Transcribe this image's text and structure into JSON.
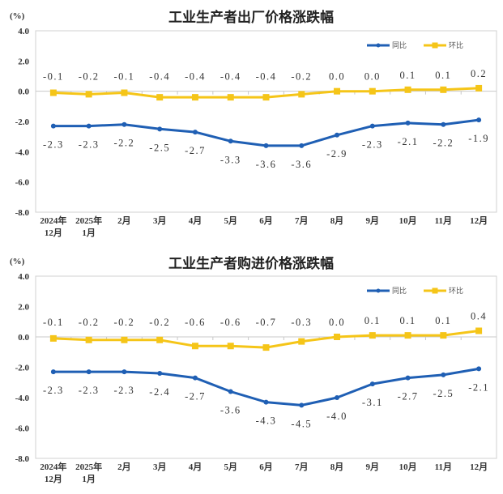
{
  "chart_data": [
    {
      "type": "line",
      "title": "工业生产者出厂价格涨跌幅",
      "unit": "(%)",
      "categories": [
        [
          "2024年",
          "12月"
        ],
        [
          "2025年",
          "1月"
        ],
        [
          "2月"
        ],
        [
          "3月"
        ],
        [
          "4月"
        ],
        [
          "5月"
        ],
        [
          "6月"
        ],
        [
          "7月"
        ],
        [
          "8月"
        ],
        [
          "9月"
        ],
        [
          "10月"
        ],
        [
          "11月"
        ],
        [
          "12月"
        ]
      ],
      "yticks": [
        "4.0",
        "2.0",
        "0.0",
        "-2.0",
        "-4.0",
        "-6.0",
        "-8.0"
      ],
      "ylim": [
        -8,
        4
      ],
      "grid": false,
      "legend_position": "top-right",
      "series": [
        {
          "name": "同比",
          "color": "#1f5fb4",
          "label_position": "below",
          "values": [
            -2.3,
            -2.3,
            -2.2,
            -2.5,
            -2.7,
            -3.3,
            -3.6,
            -3.6,
            -2.9,
            -2.3,
            -2.1,
            -2.2,
            -1.9
          ]
        },
        {
          "name": "环比",
          "color": "#f5c518",
          "label_position": "above",
          "values": [
            -0.1,
            -0.2,
            -0.1,
            -0.4,
            -0.4,
            -0.4,
            -0.4,
            -0.2,
            0.0,
            0.0,
            0.1,
            0.1,
            0.2
          ]
        }
      ]
    },
    {
      "type": "line",
      "title": "工业生产者购进价格涨跌幅",
      "unit": "(%)",
      "categories": [
        [
          "2024年",
          "12月"
        ],
        [
          "2025年",
          "1月"
        ],
        [
          "2月"
        ],
        [
          "3月"
        ],
        [
          "4月"
        ],
        [
          "5月"
        ],
        [
          "6月"
        ],
        [
          "7月"
        ],
        [
          "8月"
        ],
        [
          "9月"
        ],
        [
          "10月"
        ],
        [
          "11月"
        ],
        [
          "12月"
        ]
      ],
      "yticks": [
        "4.0",
        "2.0",
        "0.0",
        "-2.0",
        "-4.0",
        "-6.0",
        "-8.0"
      ],
      "ylim": [
        -8,
        4
      ],
      "grid": false,
      "legend_position": "top-right",
      "series": [
        {
          "name": "同比",
          "color": "#1f5fb4",
          "label_position": "below",
          "values": [
            -2.3,
            -2.3,
            -2.3,
            -2.4,
            -2.7,
            -3.6,
            -4.3,
            -4.5,
            -4.0,
            -3.1,
            -2.7,
            -2.5,
            -2.1
          ]
        },
        {
          "name": "环比",
          "color": "#f5c518",
          "label_position": "above",
          "values": [
            -0.1,
            -0.2,
            -0.2,
            -0.2,
            -0.6,
            -0.6,
            -0.7,
            -0.3,
            0.0,
            0.1,
            0.1,
            0.1,
            0.4
          ]
        }
      ]
    }
  ]
}
